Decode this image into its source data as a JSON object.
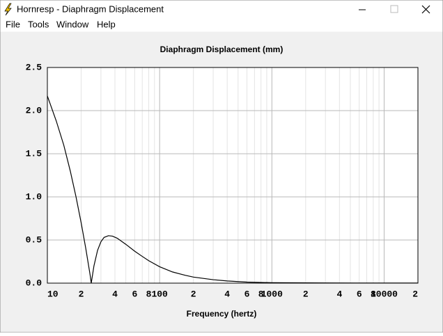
{
  "window": {
    "title": "Hornresp - Diaphragm Displacement",
    "menu": [
      "File",
      "Tools",
      "Window",
      "Help"
    ]
  },
  "chart_data": {
    "type": "line",
    "title": "Diaphragm Displacement (mm)",
    "xlabel": "Frequency (hertz)",
    "xscale": "log",
    "grid": true,
    "color": "#000000",
    "x": [
      10,
      12,
      14,
      16,
      18,
      20,
      22,
      24,
      24.6,
      26,
      28,
      30,
      32,
      35,
      38,
      42,
      50,
      60,
      70,
      80,
      100,
      130,
      170,
      200,
      300,
      400,
      600,
      1000,
      3000,
      20000
    ],
    "values": [
      2.17,
      1.88,
      1.6,
      1.3,
      1.0,
      0.7,
      0.4,
      0.1,
      0.0,
      0.2,
      0.38,
      0.48,
      0.53,
      0.55,
      0.545,
      0.52,
      0.45,
      0.37,
      0.31,
      0.26,
      0.19,
      0.13,
      0.09,
      0.07,
      0.04,
      0.025,
      0.012,
      0.005,
      0.002,
      0.001
    ],
    "xlim": [
      10,
      20000
    ],
    "ylim": [
      0,
      2.5
    ],
    "yticks": [
      {
        "value": 0,
        "label": "0.0"
      },
      0.5,
      {
        "value": 1,
        "label": "1.0"
      },
      1.5,
      {
        "value": 2,
        "label": "2.0"
      },
      2.5
    ],
    "xticks": [
      10,
      {
        "value": 20,
        "label": "2"
      },
      {
        "value": 40,
        "label": "4"
      },
      {
        "value": 60,
        "label": "6"
      },
      {
        "value": 80,
        "label": "8"
      },
      100,
      {
        "value": 200,
        "label": "2"
      },
      {
        "value": 400,
        "label": "4"
      },
      {
        "value": 600,
        "label": "6"
      },
      {
        "value": 800,
        "label": "8"
      },
      1000,
      {
        "value": 2000,
        "label": "2"
      },
      {
        "value": 4000,
        "label": "4"
      },
      {
        "value": 6000,
        "label": "6"
      },
      {
        "value": 8000,
        "label": "8"
      },
      10000,
      {
        "value": 20000,
        "label": "2"
      }
    ],
    "xminorticks": [
      30,
      50,
      70,
      90,
      300,
      500,
      700,
      900,
      3000,
      5000,
      7000,
      9000
    ]
  }
}
